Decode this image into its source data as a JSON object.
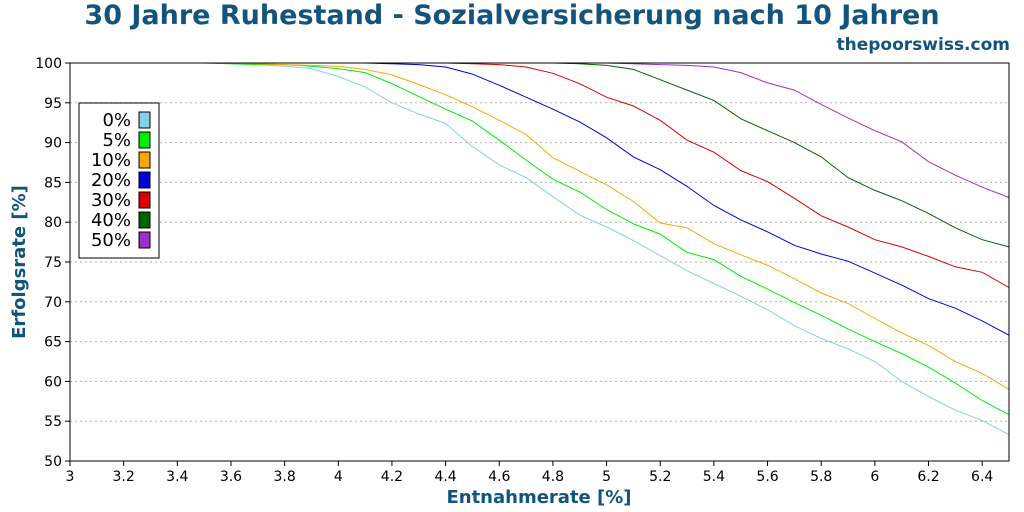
{
  "chart_data": {
    "type": "line",
    "title": "30 Jahre Ruhestand - Sozialversicherung nach 10 Jahren",
    "subtitle": "thepoorswiss.com",
    "xlabel": "Entnahmerate [%]",
    "ylabel": "Erfolgsrate [%]",
    "xlim": [
      3,
      6.5
    ],
    "ylim": [
      50,
      100
    ],
    "xticks": [
      "3",
      "3.2",
      "3.4",
      "3.6",
      "3.8",
      "4",
      "4.2",
      "4.4",
      "4.6",
      "4.8",
      "5",
      "5.2",
      "5.4",
      "5.6",
      "5.8",
      "6",
      "6.2",
      "6.4"
    ],
    "yticks": [
      "50",
      "55",
      "60",
      "65",
      "70",
      "75",
      "80",
      "85",
      "90",
      "95",
      "100"
    ],
    "grid": "horizontal dotted",
    "legend_position": "top-left",
    "x": [
      3.0,
      3.1,
      3.2,
      3.3,
      3.4,
      3.5,
      3.6,
      3.7,
      3.8,
      3.9,
      4.0,
      4.1,
      4.2,
      4.3,
      4.4,
      4.5,
      4.6,
      4.7,
      4.8,
      4.9,
      5.0,
      5.1,
      5.2,
      5.3,
      5.4,
      5.5,
      5.6,
      5.7,
      5.8,
      5.9,
      6.0,
      6.1,
      6.2,
      6.3,
      6.4,
      6.5
    ],
    "series": [
      {
        "name": "0%",
        "color": "#87ceeb",
        "values": [
          100,
          100,
          100,
          100,
          100,
          100,
          99.9,
          99.8,
          99.6,
          99.3,
          98.3,
          97,
          95,
          93.6,
          92.4,
          89.5,
          87.2,
          85.6,
          83.2,
          80.9,
          79.4,
          77.7,
          75.8,
          73.9,
          72.3,
          70.7,
          69,
          67,
          65.4,
          64.1,
          62.5,
          60,
          58.1,
          56.4,
          55.1,
          53.3
        ]
      },
      {
        "name": "5%",
        "color": "#00ee00",
        "values": [
          100,
          100,
          100,
          100,
          100,
          100,
          99.9,
          99.8,
          99.8,
          99.6,
          99.3,
          98.8,
          97.4,
          95.8,
          94.2,
          92.7,
          90.3,
          87.8,
          85.4,
          83.8,
          81.6,
          79.8,
          78.5,
          76.2,
          75.3,
          73.2,
          71.6,
          69.9,
          68.3,
          66.6,
          65,
          63.5,
          61.8,
          59.8,
          57.6,
          55.8
        ]
      },
      {
        "name": "10%",
        "color": "#ffa500",
        "values": [
          100,
          100,
          100,
          100,
          100,
          100,
          100,
          99.9,
          99.8,
          99.7,
          99.6,
          99.2,
          98.5,
          97.3,
          96,
          94.5,
          92.8,
          91,
          88.1,
          86.4,
          84.7,
          82.6,
          79.9,
          79.3,
          77.3,
          75.9,
          74.6,
          72.9,
          71.1,
          69.8,
          67.9,
          66.1,
          64.5,
          62.5,
          61,
          59
        ]
      },
      {
        "name": "20%",
        "color": "#0000dd",
        "values": [
          100,
          100,
          100,
          100,
          100,
          100,
          100,
          100,
          100,
          100,
          100,
          100,
          99.9,
          99.8,
          99.5,
          98.6,
          97.2,
          95.7,
          94.2,
          92.6,
          90.6,
          88.2,
          86.6,
          84.5,
          82.1,
          80.3,
          78.8,
          77.1,
          76,
          75.1,
          73.6,
          72.1,
          70.4,
          69.2,
          67.6,
          65.8
        ]
      },
      {
        "name": "30%",
        "color": "#dd0000",
        "values": [
          100,
          100,
          100,
          100,
          100,
          100,
          100,
          100,
          100,
          100,
          100,
          100,
          100,
          100,
          100,
          99.9,
          99.8,
          99.5,
          98.7,
          97.4,
          95.7,
          94.6,
          92.8,
          90.3,
          88.8,
          86.5,
          85.1,
          83,
          80.8,
          79.4,
          77.8,
          76.9,
          75.7,
          74.4,
          73.7,
          71.8
        ]
      },
      {
        "name": "40%",
        "color": "#006400",
        "values": [
          100,
          100,
          100,
          100,
          100,
          100,
          100,
          100,
          100,
          100,
          100,
          100,
          100,
          100,
          100,
          100,
          100,
          100,
          100,
          99.9,
          99.7,
          99.2,
          97.9,
          96.6,
          95.3,
          93,
          91.5,
          90,
          88.2,
          85.6,
          84,
          82.7,
          81.1,
          79.3,
          77.8,
          76.9
        ]
      },
      {
        "name": "50%",
        "color": "#9932cc",
        "values": [
          100,
          100,
          100,
          100,
          100,
          100,
          100,
          100,
          100,
          100,
          100,
          100,
          100,
          100,
          100,
          100,
          100,
          100,
          100,
          100,
          100,
          99.9,
          99.8,
          99.7,
          99.5,
          98.8,
          97.5,
          96.6,
          94.8,
          93.1,
          91.5,
          90.1,
          87.6,
          85.9,
          84.4,
          83.1
        ]
      }
    ]
  }
}
